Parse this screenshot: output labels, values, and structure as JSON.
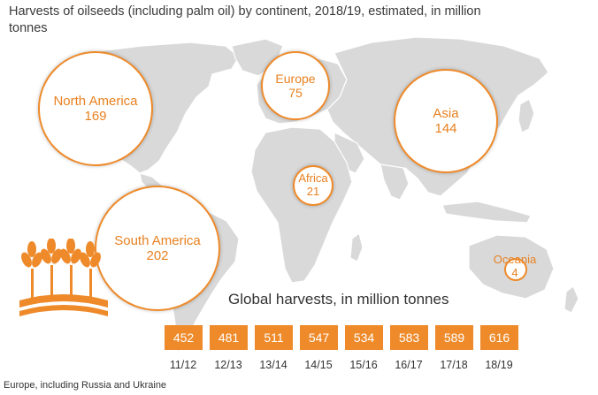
{
  "title": "Harvests of oilseeds (including palm oil) by continent, 2018/19, estimated, in million tonnes",
  "icons": {
    "logo": "wheat-ears-icon"
  },
  "colors": {
    "accent": "#ee8a2a",
    "text_accent": "#e8801f",
    "land": "#d9d9d9"
  },
  "chart_data": [
    {
      "type": "bubble-map",
      "title": "Harvests of oilseeds (including palm oil) by continent, 2018/19, estimated, in million tonnes",
      "regions": [
        {
          "name": "North America",
          "value": 169
        },
        {
          "name": "Europe",
          "value": 75
        },
        {
          "name": "Asia",
          "value": 144
        },
        {
          "name": "Africa",
          "value": 21
        },
        {
          "name": "South America",
          "value": 202
        },
        {
          "name": "Oceania",
          "value": 4
        }
      ]
    },
    {
      "type": "table",
      "title": "Global harvests, in million tonnes",
      "categories": [
        "11/12",
        "12/13",
        "13/14",
        "14/15",
        "15/16",
        "16/17",
        "17/18",
        "18/19"
      ],
      "values": [
        452,
        481,
        511,
        547,
        534,
        583,
        589,
        616
      ]
    }
  ],
  "footnote": "Europe, including Russia and Ukraine"
}
